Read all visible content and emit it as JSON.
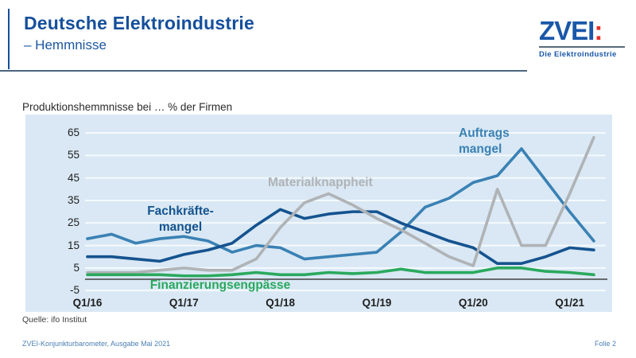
{
  "header": {
    "title": "Deutsche Elektroindustrie",
    "subtitle": "– Hemmnisse",
    "accent_color": "#154f9c"
  },
  "logo": {
    "word": "ZVEI",
    "colon": ":",
    "tagline": "Die Elektroindustrie",
    "blue": "#1a57a8",
    "red": "#e5332a"
  },
  "chart_data": {
    "type": "line",
    "title": "Produktionshemmnisse bei … % der Firmen",
    "plot_bg": "#d9e8f4",
    "grid": true,
    "gridline_color": "#f5fafd",
    "zero_line_color": "#404040",
    "ylim": [
      -5,
      65
    ],
    "y_ticks": [
      65,
      55,
      45,
      35,
      25,
      15,
      5,
      -5
    ],
    "x_ticks": [
      {
        "index": 0,
        "label": "Q1/16"
      },
      {
        "index": 4,
        "label": "Q1/17"
      },
      {
        "index": 8,
        "label": "Q1/18"
      },
      {
        "index": 12,
        "label": "Q1/19"
      },
      {
        "index": 16,
        "label": "Q1/20"
      },
      {
        "index": 20,
        "label": "Q1/21"
      }
    ],
    "categories": [
      "Q1/16",
      "Q2/16",
      "Q3/16",
      "Q4/16",
      "Q1/17",
      "Q2/17",
      "Q3/17",
      "Q4/17",
      "Q1/18",
      "Q2/18",
      "Q3/18",
      "Q4/18",
      "Q1/19",
      "Q2/19",
      "Q3/19",
      "Q4/19",
      "Q1/20",
      "Q2/20",
      "Q3/20",
      "Q4/20",
      "Q1/21",
      "Q2/21"
    ],
    "series": [
      {
        "id": "auftragsmangel",
        "name": "Auftragsmangel",
        "color": "#3a81b4",
        "label_lines": [
          "Auftrags",
          "mangel"
        ],
        "values": [
          18,
          20,
          16,
          18,
          19,
          17,
          12,
          15,
          14,
          9,
          10,
          11,
          12,
          21,
          32,
          36,
          43,
          46,
          58,
          44,
          30,
          17
        ]
      },
      {
        "id": "fachkraeftemangel",
        "name": "Fachkräftemangel",
        "color": "#15538f",
        "label_lines": [
          "Fachkräfte-",
          "mangel"
        ],
        "values": [
          10,
          10,
          9,
          8,
          11,
          13,
          16,
          24,
          31,
          27,
          29,
          30,
          30,
          25,
          21,
          17,
          14,
          7,
          7,
          10,
          14,
          13
        ]
      },
      {
        "id": "materialknappheit",
        "name": "Materialknappheit",
        "color": "#b0b3b6",
        "label_lines": [
          "Materialknappheit"
        ],
        "values": [
          3,
          3,
          3,
          4,
          5,
          4,
          4,
          9,
          23,
          34,
          38,
          33,
          27,
          22,
          16,
          10,
          6,
          40,
          15,
          15,
          38,
          63
        ]
      },
      {
        "id": "finanzierungsengpaesse",
        "name": "Finanzierungsengpässe",
        "color": "#2aa95d",
        "label_lines": [
          "Finanzierungsengpässe"
        ],
        "values": [
          2,
          2,
          2,
          2,
          1.5,
          1.5,
          2,
          3,
          2,
          2,
          3,
          2.5,
          3,
          4.5,
          3,
          3,
          3,
          5,
          5,
          3.5,
          3,
          2
        ]
      }
    ],
    "legend_position": "inline-labels"
  },
  "footer": {
    "source": "Quelle: ifo Institut",
    "left": "ZVEI-Konjunkturbarometer, Ausgabe Mai 2021",
    "right": "Folie 2"
  }
}
